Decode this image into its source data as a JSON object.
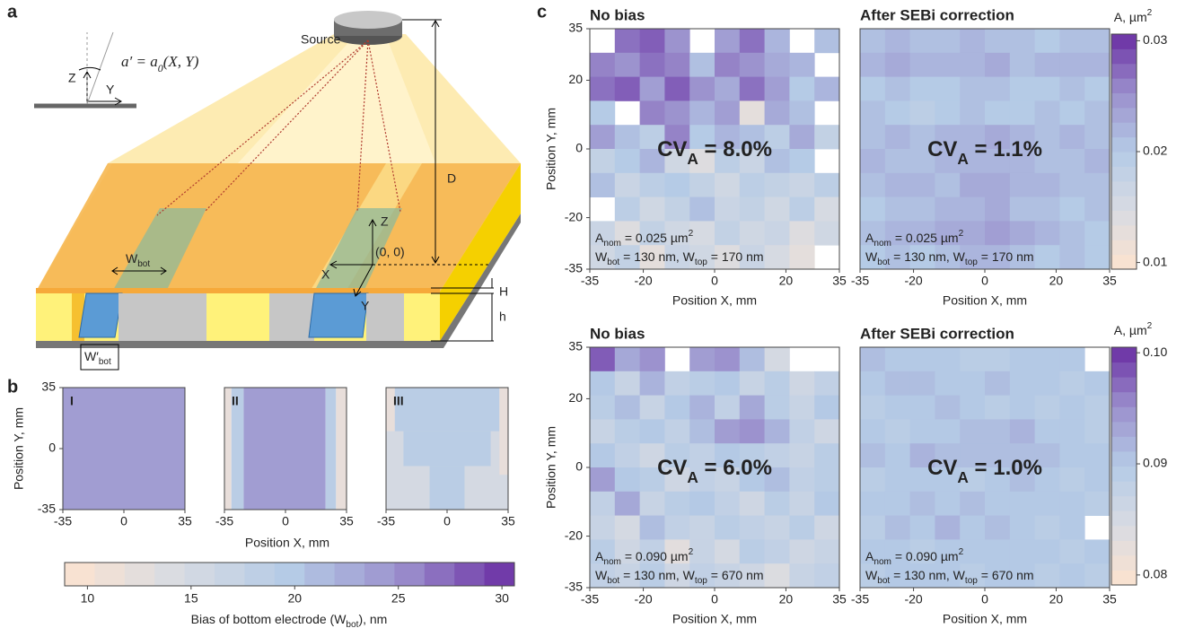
{
  "panel_labels": {
    "a": "a",
    "b": "b",
    "c": "c"
  },
  "colormap": [
    "#fde3cf",
    "#d8dbe2",
    "#b5cbe6",
    "#9b90cd",
    "#6a2ea3"
  ],
  "panel_a": {
    "source": "Source",
    "inset_z": "Z",
    "inset_y": "Y",
    "formula": {
      "lhs": "a′ = a",
      "sub": "0",
      "rhs": "(X, Y)"
    },
    "d": "D",
    "z": "Z",
    "x": "X",
    "y": "Y",
    "origin": "(0, 0)",
    "w_bot": {
      "main": "W",
      "sub": "bot"
    },
    "w_bot_prime": {
      "main": "W′",
      "sub": "bot"
    },
    "h_upper": "H",
    "h_lower": "h"
  },
  "panel_b": {
    "y_label": "Position Y, mm",
    "x_label": "Position X, mm",
    "xlim": [
      -35,
      35
    ],
    "ylim": [
      -35,
      35
    ],
    "xticks": [
      -35,
      0,
      35
    ],
    "yticks": [
      -35,
      0,
      35
    ],
    "maps": [
      {
        "label": "I",
        "regions": [
          {
            "x": [
              -35,
              35
            ],
            "y": [
              -35,
              35
            ],
            "value": 24
          }
        ]
      },
      {
        "label": "II",
        "regions": [
          {
            "x": [
              -35,
              -31
            ],
            "y": [
              -35,
              35
            ],
            "value": 12
          },
          {
            "x": [
              -31,
              -24
            ],
            "y": [
              -35,
              35
            ],
            "value": 19
          },
          {
            "x": [
              -24,
              23
            ],
            "y": [
              -35,
              35
            ],
            "value": 24
          },
          {
            "x": [
              23,
              29
            ],
            "y": [
              -35,
              35
            ],
            "value": 19
          },
          {
            "x": [
              29,
              35
            ],
            "y": [
              -35,
              35
            ],
            "value": 12
          }
        ]
      },
      {
        "label": "III",
        "regions": [
          {
            "x": [
              -35,
              35
            ],
            "y": [
              -35,
              35
            ],
            "value": 15
          },
          {
            "x": [
              -30,
              30
            ],
            "y": [
              10,
              35
            ],
            "value": 19
          },
          {
            "x": [
              -35,
              -30
            ],
            "y": [
              10,
              35
            ],
            "value": 12
          },
          {
            "x": [
              30,
              35
            ],
            "y": [
              -15,
              35
            ],
            "value": 12
          },
          {
            "x": [
              -25,
              25
            ],
            "y": [
              -10,
              10
            ],
            "value": 19
          },
          {
            "x": [
              -10,
              10
            ],
            "y": [
              -35,
              -10
            ],
            "value": 19
          }
        ]
      }
    ],
    "colorbar": {
      "label": {
        "main": "Bias of bottom electrode (W",
        "sub": "bot",
        "end": "), nm"
      },
      "lim": [
        8.9,
        30.6
      ],
      "ticks": [
        10,
        15,
        20,
        25,
        30
      ]
    }
  },
  "panel_c": {
    "x_label": "Position X, mm",
    "y_label": "Position Y, mm",
    "xlim": [
      -35,
      35
    ],
    "ylim": [
      -35,
      35
    ],
    "xticks": [
      -35,
      -20,
      0,
      20,
      35
    ],
    "yticks": [
      -35,
      -20,
      0,
      20,
      35
    ],
    "colorbars": [
      {
        "label": {
          "main": "A, µm",
          "sup": "2"
        },
        "lim": [
          0.0094,
          0.0306
        ],
        "ticks": [
          0.01,
          0.02,
          0.03
        ]
      },
      {
        "label": {
          "main": "A, µm",
          "sup": "2"
        },
        "lim": [
          0.0791,
          0.1005
        ],
        "ticks": [
          0.08,
          0.09,
          {
            "value": 0.1,
            "label": "0.10"
          }
        ]
      }
    ],
    "maps": [
      {
        "title": "No bias",
        "colorbar": 0,
        "cv": {
          "main": "CV",
          "sub": "A",
          "end": " = 8.0%"
        },
        "a_nom": {
          "main": "A",
          "sub": "nom",
          "mid": " = 0.025 µm",
          "sup": "2"
        },
        "widths": {
          "w1": "W",
          "s1": "bot",
          "t1": " = 130 nm, ",
          "w2": "W",
          "s2": "top",
          "t2": " = 170 nm"
        },
        "values": [
          [
            null,
            0.027,
            0.028,
            0.025,
            null,
            0.024,
            0.027,
            0.022,
            null,
            0.021
          ],
          [
            0.026,
            0.025,
            0.027,
            0.026,
            0.021,
            0.026,
            0.025,
            0.023,
            0.022,
            null
          ],
          [
            0.027,
            0.028,
            0.024,
            0.028,
            0.025,
            0.023,
            0.027,
            0.024,
            0.02,
            0.022
          ],
          [
            0.02,
            null,
            0.026,
            0.025,
            0.022,
            0.024,
            0.013,
            0.023,
            0.021,
            null
          ],
          [
            0.024,
            0.021,
            0.019,
            0.026,
            0.02,
            0.022,
            0.021,
            0.019,
            0.023,
            0.018
          ],
          [
            0.018,
            0.02,
            0.022,
            0.016,
            0.014,
            0.019,
            0.017,
            0.021,
            0.02,
            null
          ],
          [
            0.021,
            0.017,
            0.019,
            0.02,
            0.018,
            0.016,
            0.019,
            0.018,
            0.017,
            0.019
          ],
          [
            null,
            0.019,
            0.016,
            0.018,
            0.021,
            0.017,
            0.018,
            0.016,
            0.019,
            0.015
          ],
          [
            0.017,
            0.014,
            0.018,
            0.016,
            0.015,
            0.018,
            0.016,
            0.017,
            0.014,
            0.016
          ],
          [
            0.016,
            0.018,
            0.013,
            0.017,
            0.016,
            0.014,
            0.017,
            0.015,
            0.013,
            null
          ]
        ]
      },
      {
        "title": "After SEBi correction",
        "colorbar": 0,
        "cv": {
          "main": "CV",
          "sub": "A",
          "end": " = 1.1%"
        },
        "a_nom": {
          "main": "A",
          "sub": "nom",
          "mid": " = 0.025 µm",
          "sup": "2"
        },
        "widths": {
          "w1": "W",
          "s1": "bot",
          "t1": " = 130 nm, ",
          "w2": "W",
          "s2": "top",
          "t2": " = 170 nm"
        },
        "values": [
          [
            0.021,
            0.022,
            0.021,
            0.021,
            0.022,
            0.021,
            0.021,
            0.02,
            0.021,
            0.021
          ],
          [
            0.022,
            0.023,
            0.022,
            0.022,
            0.022,
            0.023,
            0.021,
            0.022,
            0.022,
            0.022
          ],
          [
            0.02,
            0.021,
            0.02,
            0.02,
            0.021,
            0.021,
            0.02,
            0.02,
            0.021,
            0.02
          ],
          [
            0.021,
            0.02,
            0.019,
            0.02,
            0.021,
            0.02,
            0.02,
            0.021,
            0.02,
            0.021
          ],
          [
            0.021,
            0.022,
            0.021,
            0.022,
            0.022,
            0.023,
            0.022,
            0.021,
            0.022,
            0.021
          ],
          [
            0.022,
            0.021,
            0.021,
            0.022,
            0.022,
            0.022,
            0.022,
            0.021,
            0.021,
            0.022
          ],
          [
            0.021,
            0.022,
            0.022,
            0.021,
            0.023,
            0.023,
            0.022,
            0.022,
            0.021,
            0.021
          ],
          [
            0.02,
            0.021,
            0.021,
            0.022,
            0.022,
            0.023,
            0.021,
            0.021,
            0.02,
            0.021
          ],
          [
            0.021,
            0.022,
            0.022,
            0.023,
            0.023,
            0.024,
            0.023,
            0.022,
            0.021,
            0.02
          ],
          [
            0.02,
            0.021,
            0.02,
            0.021,
            0.022,
            0.022,
            0.021,
            0.02,
            0.021,
            0.02
          ]
        ]
      },
      {
        "title": "No bias",
        "colorbar": 1,
        "cv": {
          "main": "CV",
          "sub": "A",
          "end": " = 6.0%"
        },
        "a_nom": {
          "main": "A",
          "sub": "nom",
          "mid": " = 0.090 µm",
          "sup": "2"
        },
        "widths": {
          "w1": "W",
          "s1": "bot",
          "t1": " = 130 nm, ",
          "w2": "W",
          "s2": "top",
          "t2": " = 670 nm"
        },
        "values": [
          [
            0.098,
            0.093,
            0.095,
            null,
            0.094,
            0.095,
            0.091,
            0.085,
            null,
            null
          ],
          [
            0.09,
            0.087,
            0.092,
            0.088,
            0.089,
            0.09,
            0.087,
            0.089,
            0.086,
            0.088
          ],
          [
            0.089,
            0.091,
            0.087,
            0.09,
            0.092,
            0.088,
            0.093,
            0.089,
            0.087,
            0.09
          ],
          [
            0.087,
            0.089,
            0.09,
            0.088,
            0.091,
            0.094,
            0.095,
            0.092,
            0.088,
            0.086
          ],
          [
            0.09,
            0.088,
            0.086,
            0.089,
            0.088,
            0.09,
            0.089,
            0.088,
            0.087,
            0.089
          ],
          [
            0.094,
            0.09,
            0.089,
            0.086,
            0.088,
            0.087,
            0.09,
            0.091,
            0.088,
            0.089
          ],
          [
            0.088,
            0.093,
            0.087,
            0.089,
            0.09,
            0.088,
            0.086,
            0.089,
            0.087,
            0.09
          ],
          [
            0.087,
            0.085,
            0.091,
            0.088,
            0.087,
            0.089,
            0.088,
            0.087,
            0.089,
            0.086
          ],
          [
            0.089,
            0.086,
            0.088,
            0.083,
            0.087,
            0.085,
            0.089,
            0.088,
            0.086,
            0.087
          ],
          [
            0.088,
            0.087,
            0.089,
            0.086,
            0.088,
            0.087,
            0.086,
            0.084,
            0.087,
            0.088
          ]
        ]
      },
      {
        "title": "After SEBi correction",
        "colorbar": 1,
        "cv": {
          "main": "CV",
          "sub": "A",
          "end": " = 1.0%"
        },
        "a_nom": {
          "main": "A",
          "sub": "nom",
          "mid": " = 0.090 µm",
          "sup": "2"
        },
        "widths": {
          "w1": "W",
          "s1": "bot",
          "t1": " = 130 nm, ",
          "w2": "W",
          "s2": "top",
          "t2": " = 670 nm"
        },
        "values": [
          [
            0.091,
            0.09,
            0.09,
            0.09,
            0.089,
            0.089,
            0.09,
            0.09,
            0.09,
            null
          ],
          [
            0.09,
            0.091,
            0.091,
            0.09,
            0.09,
            0.091,
            0.09,
            0.09,
            0.089,
            0.09
          ],
          [
            0.089,
            0.09,
            0.09,
            0.091,
            0.09,
            0.089,
            0.09,
            0.089,
            0.09,
            0.089
          ],
          [
            0.09,
            0.089,
            0.09,
            0.09,
            0.091,
            0.091,
            0.092,
            0.09,
            0.09,
            0.089
          ],
          [
            0.091,
            0.09,
            0.092,
            0.091,
            0.091,
            0.091,
            0.091,
            0.091,
            0.09,
            0.09
          ],
          [
            0.089,
            0.09,
            0.09,
            0.09,
            0.089,
            0.09,
            0.091,
            0.09,
            0.089,
            0.09
          ],
          [
            0.09,
            0.09,
            0.091,
            0.09,
            0.091,
            0.09,
            0.09,
            0.09,
            0.09,
            0.089
          ],
          [
            0.089,
            0.091,
            0.09,
            0.092,
            0.09,
            0.091,
            0.09,
            0.089,
            0.09,
            null
          ],
          [
            0.09,
            0.09,
            0.089,
            0.09,
            0.09,
            0.09,
            0.09,
            0.09,
            0.089,
            0.09
          ],
          [
            0.089,
            0.09,
            0.09,
            0.09,
            0.089,
            0.09,
            0.09,
            0.089,
            0.09,
            0.089
          ]
        ]
      }
    ]
  }
}
